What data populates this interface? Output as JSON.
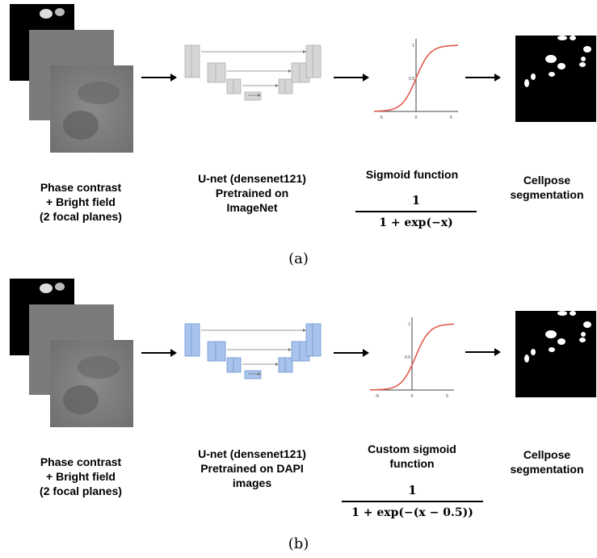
{
  "panels": [
    {
      "id": "a",
      "caption": "(a)",
      "input_label": [
        "Phase contrast",
        "+ Bright field",
        "(2 focal planes)"
      ],
      "model_label": [
        "U-net (densenet121)",
        "Pretrained on",
        "ImageNet"
      ],
      "function_label": [
        "Sigmoid function"
      ],
      "formula_num": "1",
      "formula_den": "1 + exp(−x)",
      "output_label": [
        "Cellpose",
        "segmentation"
      ],
      "unet_color": "#d6d6d6",
      "unet_stroke": "#b0b0b0"
    },
    {
      "id": "b",
      "caption": "(b)",
      "input_label": [
        "Phase contrast",
        "+ Bright field",
        "(2 focal planes)"
      ],
      "model_label": [
        "U-net (densenet121)",
        "Pretrained on DAPI",
        "images"
      ],
      "function_label": [
        "Custom sigmoid",
        "function"
      ],
      "formula_num": "1",
      "formula_den": "1 + exp(−(x − 0.5))",
      "output_label": [
        "Cellpose",
        "segmentation"
      ],
      "unet_color": "#a9c4ec",
      "unet_stroke": "#6f95d3"
    }
  ],
  "sigmoid_plot": {
    "x_ticks": [
      "-5",
      "0",
      "5"
    ],
    "y_ticks": [
      "0.5",
      "1"
    ],
    "curve_color": "#e05a4e"
  }
}
